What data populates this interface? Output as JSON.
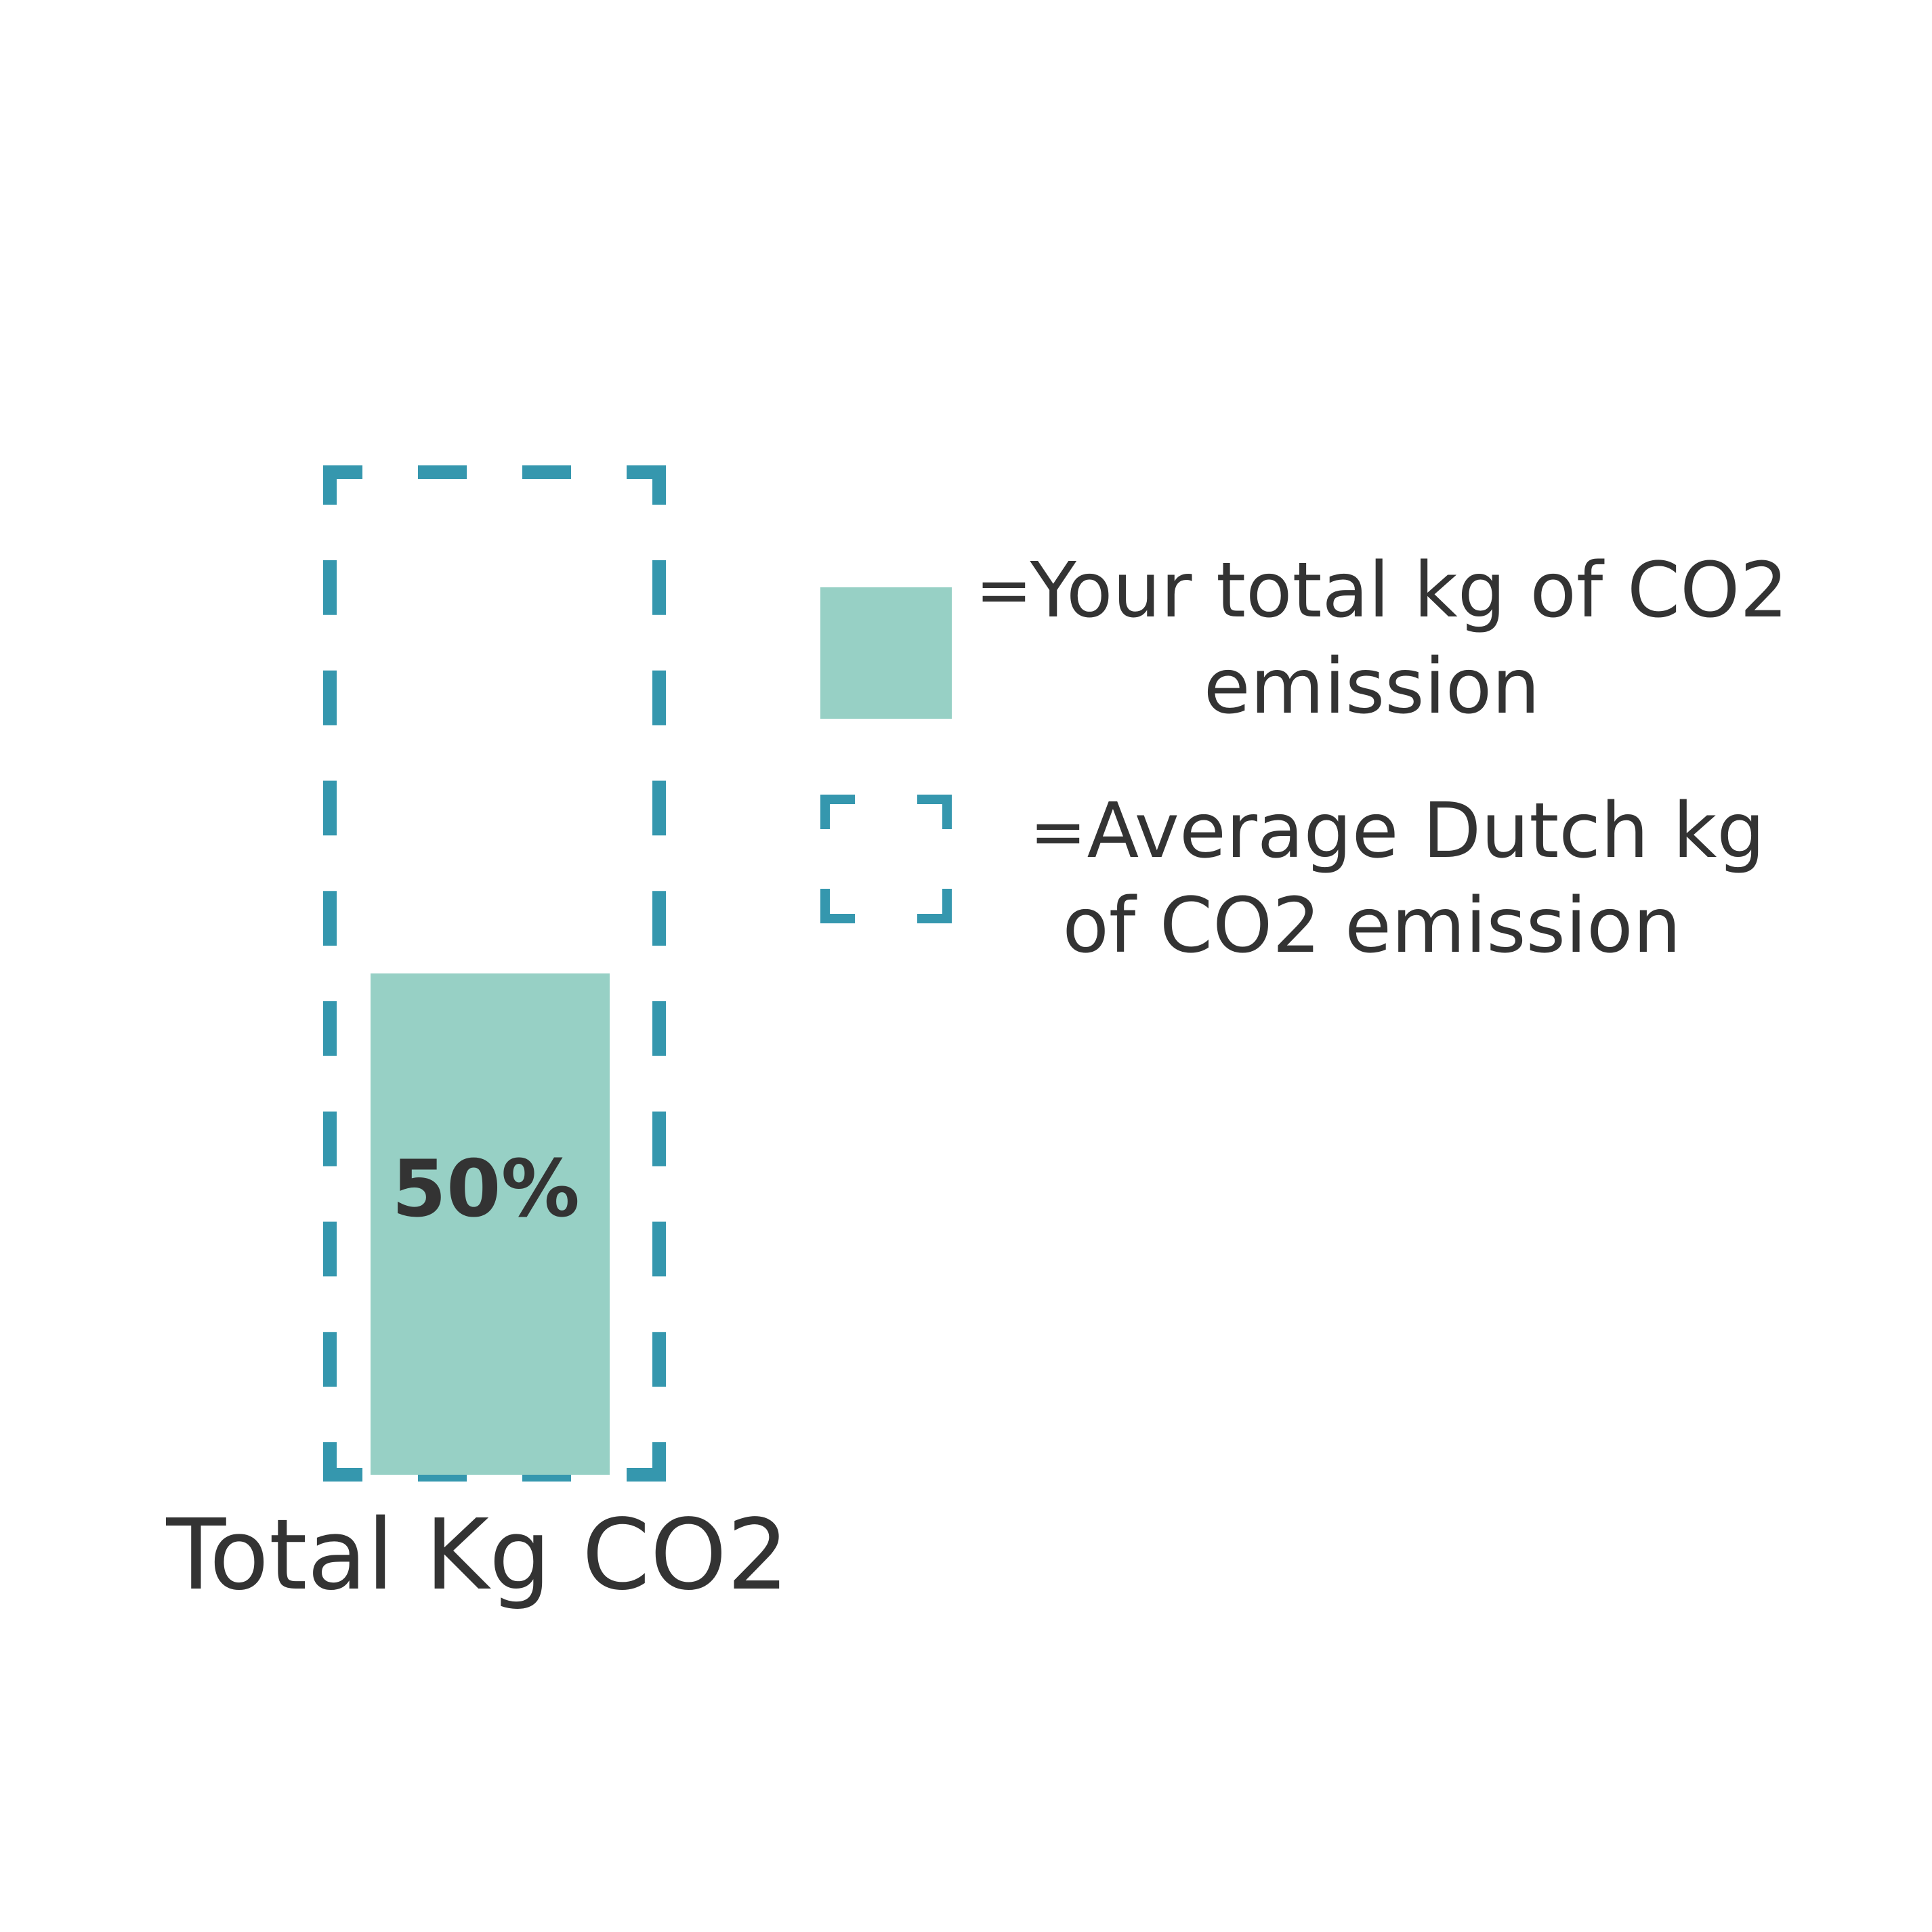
{
  "chart_data": {
    "type": "bar",
    "categories": [
      "Total Kg CO2"
    ],
    "values": [
      50
    ],
    "value_unit": "%",
    "reference_value": 100,
    "ylim": [
      0,
      100
    ],
    "data_labels": [
      "50%"
    ],
    "grid": false,
    "legend_placement": "right",
    "legend": [
      {
        "marker": "solid",
        "equals": "=",
        "lines": [
          "Your total kg of CO2",
          "emission"
        ]
      },
      {
        "marker": "dashed",
        "equals": "=",
        "lines": [
          "Average Dutch kg",
          "of CO2 emission"
        ]
      }
    ]
  },
  "colors": {
    "bar_fill": "#97D0C5",
    "reference_outline": "#3597AE",
    "text": "#333333",
    "background": "#FFFFFF"
  }
}
